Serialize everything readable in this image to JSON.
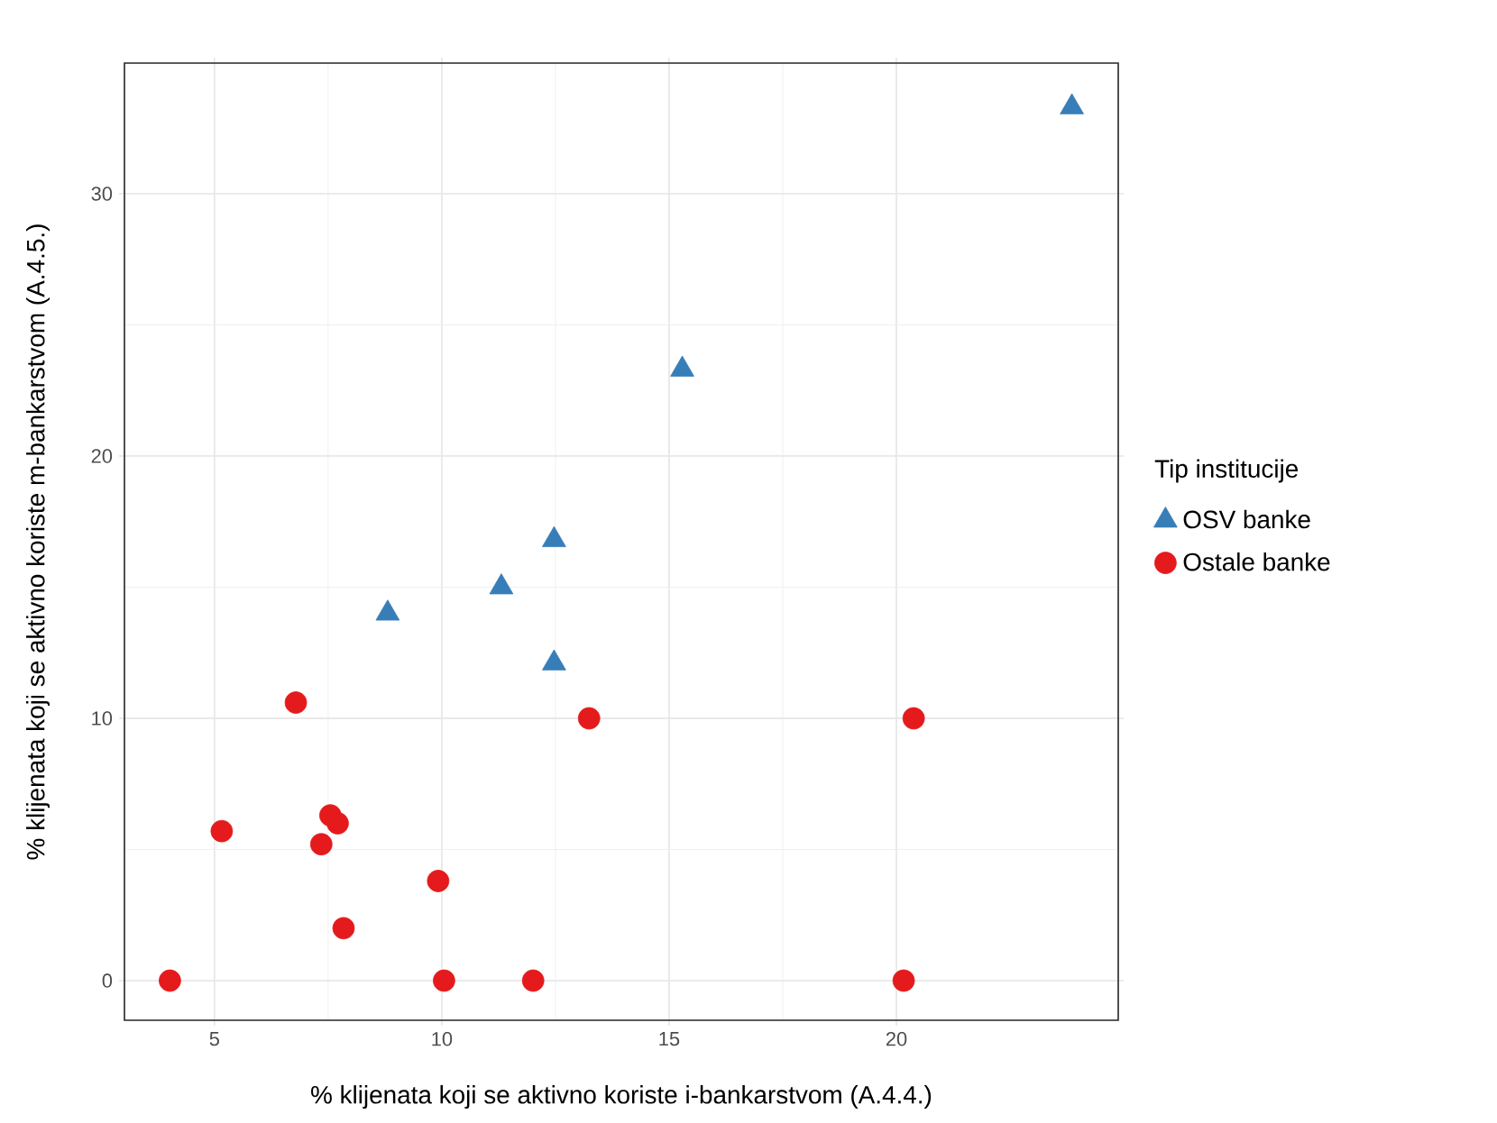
{
  "chart_data": {
    "type": "scatter",
    "xlabel": "% klijenata koji se aktivno koriste i-bankarstvom (A.4.4.)",
    "ylabel": "% klijenata koji se aktivno koriste m-bankarstvom (A.4.5.)",
    "legend_title": "Tip institucije",
    "xlim": [
      3.02,
      24.88
    ],
    "ylim": [
      -1.51,
      34.98
    ],
    "xticks": [
      5,
      10,
      15,
      20
    ],
    "yticks": [
      0,
      10,
      20,
      30
    ],
    "grid": true,
    "legend": "right",
    "series": [
      {
        "name": "OSV banke",
        "color": "#377eb8",
        "marker": "triangle",
        "x": [
          23.86,
          15.29,
          12.47,
          11.31,
          8.81,
          12.47
        ],
        "values": [
          33.3,
          23.3,
          16.8,
          15.0,
          14.0,
          12.1
        ]
      },
      {
        "name": "Ostale banke",
        "color": "#e41a1c",
        "marker": "circle",
        "x": [
          4.02,
          5.16,
          6.79,
          7.35,
          7.55,
          7.71,
          7.84,
          9.92,
          10.05,
          12.01,
          13.24,
          20.38,
          20.16
        ],
        "values": [
          0,
          5.7,
          10.6,
          5.2,
          6.3,
          6.0,
          2.0,
          3.8,
          0,
          0,
          10,
          10,
          0
        ]
      }
    ]
  }
}
